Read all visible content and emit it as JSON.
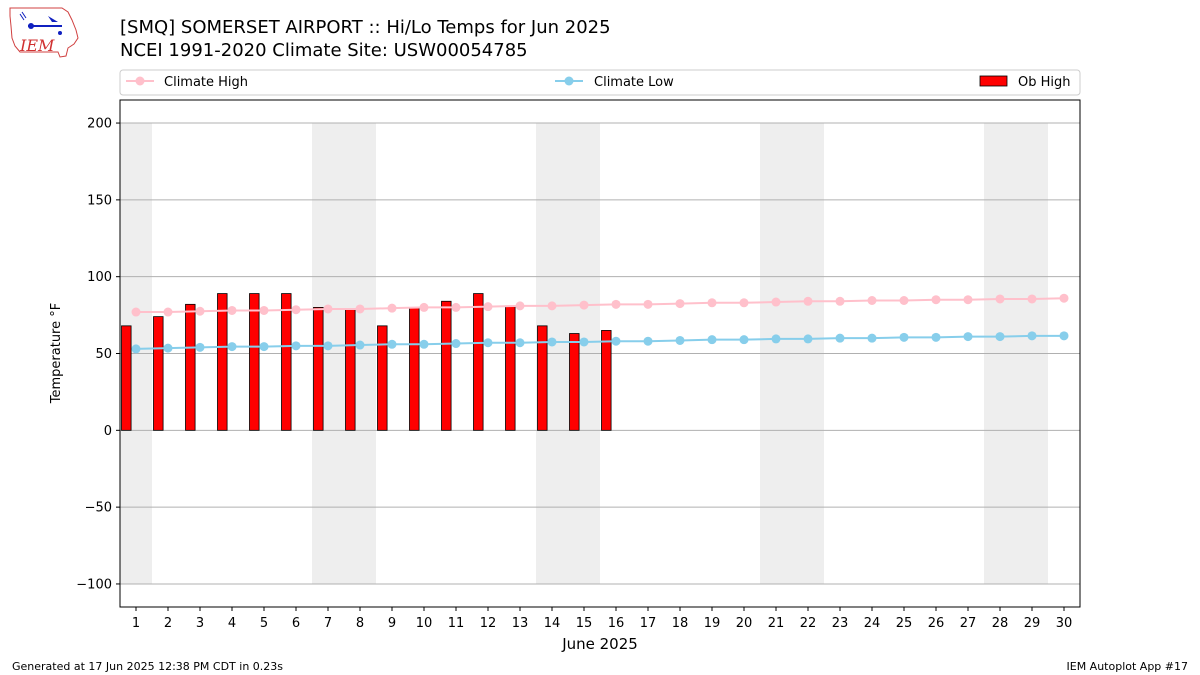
{
  "header": {
    "logo_text": "IEM",
    "title_line1": "[SMQ] SOMERSET AIRPORT :: Hi/Lo Temps for Jun 2025",
    "title_line2": "NCEI 1991-2020 Climate Site: USW00054785"
  },
  "footer": {
    "left": "Generated at 17 Jun 2025 12:38 PM CDT in 0.23s",
    "right": "IEM Autoplot App #17"
  },
  "colors": {
    "climate_high": "#ffc0cb",
    "climate_low": "#87ceeb",
    "ob_high": "#ff0000",
    "weekend_shade": "#eeeeee",
    "grid": "#b0b0b0"
  },
  "chart_data": {
    "type": "bar",
    "xlabel": "June 2025",
    "ylabel": "Temperature °F",
    "ylim": [
      -115,
      215
    ],
    "yticks": [
      -100,
      -50,
      0,
      50,
      100,
      150,
      200
    ],
    "ytick_labels": [
      "−100",
      "−50",
      "0",
      "50",
      "100",
      "150",
      "200"
    ],
    "categories": [
      "1",
      "2",
      "3",
      "4",
      "5",
      "6",
      "7",
      "8",
      "9",
      "10",
      "11",
      "12",
      "13",
      "14",
      "15",
      "16",
      "17",
      "18",
      "19",
      "20",
      "21",
      "22",
      "23",
      "24",
      "25",
      "26",
      "27",
      "28",
      "29",
      "30"
    ],
    "grid": true,
    "legend_placement": "top",
    "shaded_day_ranges": [
      [
        0.5,
        1.5
      ],
      [
        6.5,
        8.5
      ],
      [
        13.5,
        15.5
      ],
      [
        20.5,
        22.5
      ],
      [
        27.5,
        29.5
      ]
    ],
    "shaded_y_range": [
      -100,
      200
    ],
    "series": [
      {
        "name": "Climate High",
        "kind": "line",
        "values": [
          77,
          77,
          77.5,
          78,
          78,
          78.5,
          79,
          79,
          79.5,
          80,
          80,
          80.5,
          81,
          81,
          81.5,
          82,
          82,
          82.5,
          83,
          83,
          83.5,
          84,
          84,
          84.5,
          84.5,
          85,
          85,
          85.5,
          85.5,
          86
        ]
      },
      {
        "name": "Climate Low",
        "kind": "line",
        "values": [
          53,
          53.5,
          54,
          54.5,
          54.5,
          55,
          55,
          55.5,
          56,
          56,
          56.5,
          57,
          57,
          57.5,
          57.5,
          58,
          58,
          58.5,
          59,
          59,
          59.5,
          59.5,
          60,
          60,
          60.5,
          60.5,
          61,
          61,
          61.5,
          61.5
        ]
      },
      {
        "name": "Ob High",
        "kind": "bar",
        "values": [
          68,
          74,
          82,
          89,
          89,
          89,
          80,
          79,
          68,
          80,
          84,
          89,
          81,
          68,
          63,
          65,
          null,
          null,
          null,
          null,
          null,
          null,
          null,
          null,
          null,
          null,
          null,
          null,
          null,
          null
        ]
      }
    ]
  }
}
